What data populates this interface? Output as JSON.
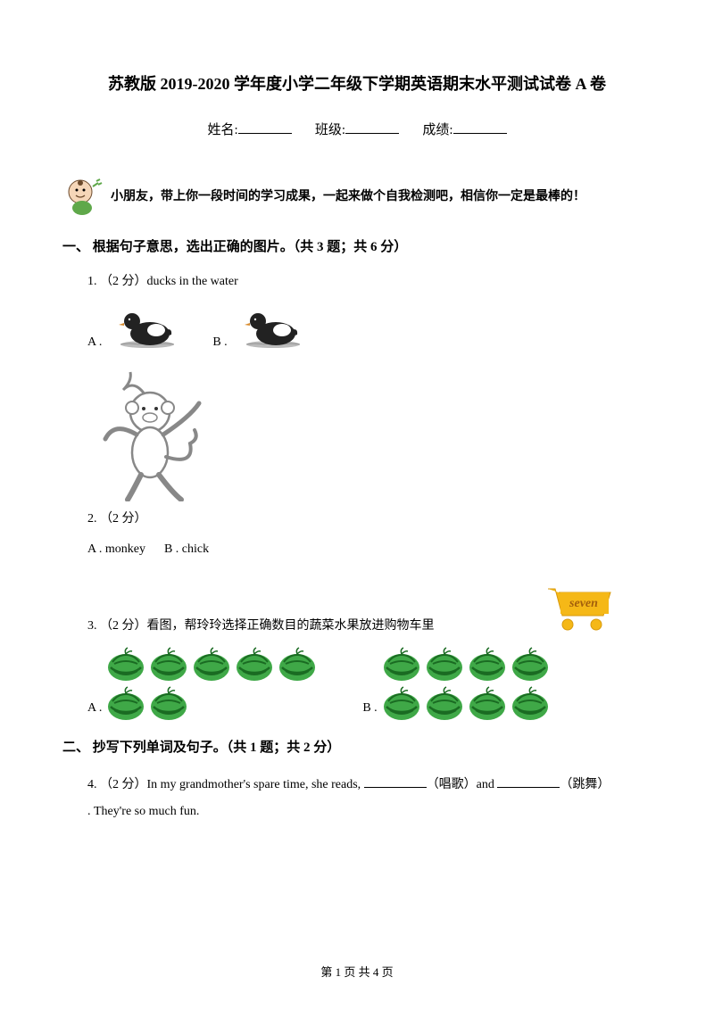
{
  "title": "苏教版 2019-2020 学年度小学二年级下学期英语期末水平测试试卷 A 卷",
  "info": {
    "name_label": "姓名:",
    "class_label": "班级:",
    "score_label": "成绩:"
  },
  "intro": "小朋友，带上你一段时间的学习成果，一起来做个自我检测吧，相信你一定是最棒的！",
  "section1": {
    "header": "一、 根据句子意思，选出正确的图片。（共 3 题；共 6 分）",
    "q1": {
      "label": "1. （2 分）ducks in the water",
      "opt_a": "A .",
      "opt_b": "B ."
    },
    "q2": {
      "label": "2. （2 分）",
      "opt_a": "A . monkey",
      "opt_b": "B . chick"
    },
    "q3": {
      "label": "3. （2 分）看图，帮玲玲选择正确数目的蔬菜水果放进购物车里",
      "cart_label": "seven",
      "opt_a": "A .",
      "opt_b": "B ."
    }
  },
  "section2": {
    "header": "二、 抄写下列单词及句子。（共 1 题；共 2 分）",
    "q4": {
      "prefix": "4. （2 分）In my grandmother's spare time, she reads, ",
      "mid1": "（唱歌）and ",
      "mid2": "（跳舞）",
      "suffix": ". They're so much fun."
    }
  },
  "footer": "第 1 页 共 4 页",
  "colors": {
    "text": "#000000",
    "bg": "#ffffff",
    "melon_green": "#3fa847",
    "melon_dark": "#1a6b22",
    "cart_yellow": "#f5b817",
    "cart_text": "#a35f0c",
    "kid_skin": "#f5d6b8",
    "kid_green": "#5fa84a",
    "duck_black": "#222222",
    "duck_white": "#ffffff",
    "monkey_gray": "#888888"
  }
}
